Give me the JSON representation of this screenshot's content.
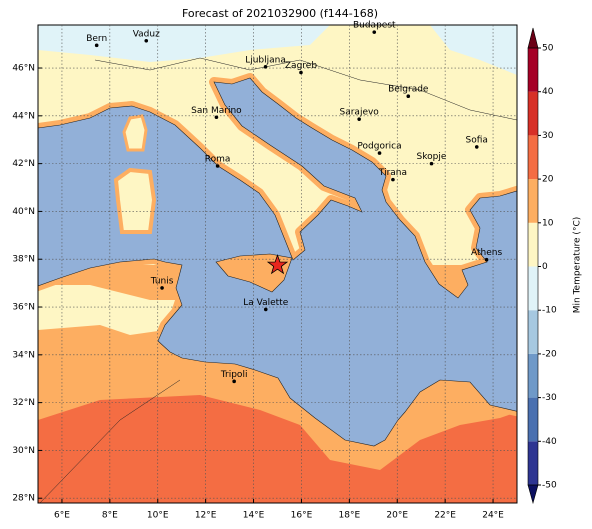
{
  "title": "Forecast of 2021032900 (f144-168)",
  "map": {
    "xlim": [
      5,
      25
    ],
    "ylim": [
      27.8,
      47.8
    ],
    "xticks": [
      {
        "value": 6,
        "label": "6°E"
      },
      {
        "value": 8,
        "label": "8°E"
      },
      {
        "value": 10,
        "label": "10°E"
      },
      {
        "value": 12,
        "label": "12°E"
      },
      {
        "value": 14,
        "label": "14°E"
      },
      {
        "value": 16,
        "label": "16°E"
      },
      {
        "value": 18,
        "label": "18°E"
      },
      {
        "value": 20,
        "label": "20°E"
      },
      {
        "value": 22,
        "label": "22°E"
      },
      {
        "value": 24,
        "label": "24°E"
      }
    ],
    "yticks": [
      {
        "value": 28,
        "label": "28°N"
      },
      {
        "value": 30,
        "label": "30°N"
      },
      {
        "value": 32,
        "label": "32°N"
      },
      {
        "value": 34,
        "label": "34°N"
      },
      {
        "value": 36,
        "label": "36°N"
      },
      {
        "value": 38,
        "label": "38°N"
      },
      {
        "value": 40,
        "label": "40°N"
      },
      {
        "value": 42,
        "label": "42°N"
      },
      {
        "value": 44,
        "label": "44°N"
      },
      {
        "value": 46,
        "label": "46°N"
      }
    ],
    "grid": true,
    "cities": [
      {
        "name": "Bern",
        "lon": 7.45,
        "lat": 46.95
      },
      {
        "name": "Vaduz",
        "lon": 9.52,
        "lat": 47.14
      },
      {
        "name": "Budapest",
        "lon": 19.04,
        "lat": 47.5
      },
      {
        "name": "Ljubljana",
        "lon": 14.5,
        "lat": 46.05
      },
      {
        "name": "Zagreb",
        "lon": 15.98,
        "lat": 45.81
      },
      {
        "name": "Belgrade",
        "lon": 20.46,
        "lat": 44.82
      },
      {
        "name": "San Marino",
        "lon": 12.45,
        "lat": 43.94
      },
      {
        "name": "Sarajevo",
        "lon": 18.41,
        "lat": 43.86
      },
      {
        "name": "Sofia",
        "lon": 23.32,
        "lat": 42.7
      },
      {
        "name": "Podgorica",
        "lon": 19.26,
        "lat": 42.44
      },
      {
        "name": "Skopje",
        "lon": 21.43,
        "lat": 42.0
      },
      {
        "name": "Roma",
        "lon": 12.5,
        "lat": 41.9
      },
      {
        "name": "Tirana",
        "lon": 19.82,
        "lat": 41.33
      },
      {
        "name": "Athens",
        "lon": 23.73,
        "lat": 37.98
      },
      {
        "name": "Tunis",
        "lon": 10.18,
        "lat": 36.8
      },
      {
        "name": "La Valette",
        "lon": 14.51,
        "lat": 35.9
      },
      {
        "name": "Tripoli",
        "lon": 13.19,
        "lat": 32.89
      }
    ],
    "star": {
      "lon": 15.0,
      "lat": 37.75,
      "color": "#e8261e"
    }
  },
  "colorbar": {
    "label": "Min Temperature (°C)",
    "lim": [
      -50,
      50
    ],
    "levels": [
      -50,
      -40,
      -30,
      -20,
      -10,
      0,
      10,
      20,
      30,
      40,
      50
    ],
    "colors": [
      "#2e3592",
      "#4a70b0",
      "#6f99c8",
      "#a6c8e0",
      "#e0f3f8",
      "#fef6c4",
      "#fdae61",
      "#f46d43",
      "#d73027",
      "#a50026"
    ],
    "under_color": "#0c1060",
    "over_color": "#6b0016",
    "ticks": [
      -50,
      -40,
      -30,
      -20,
      -10,
      0,
      10,
      20,
      30,
      40,
      50
    ]
  }
}
